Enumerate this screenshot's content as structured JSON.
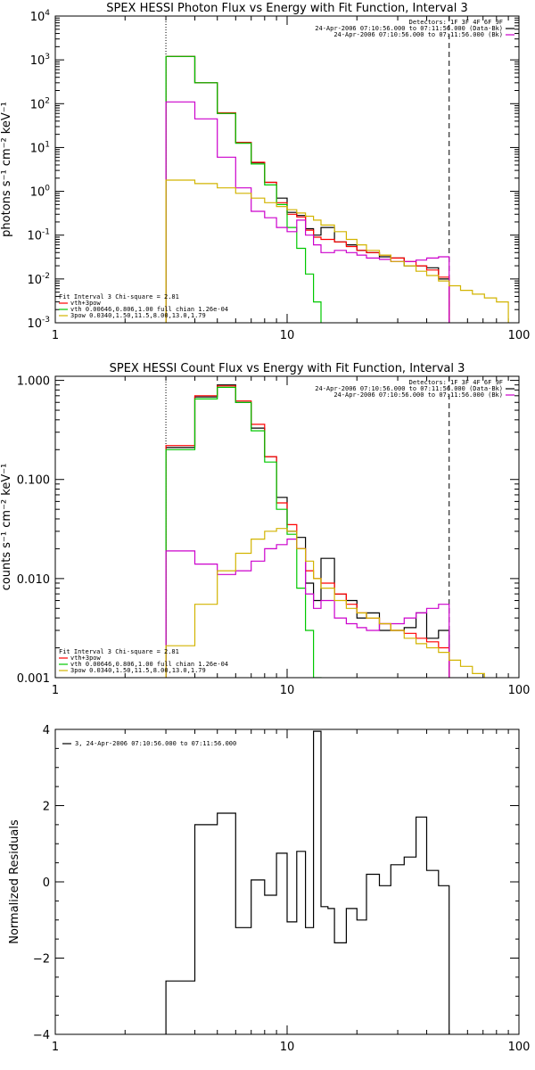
{
  "chart_data": [
    {
      "type": "line",
      "step": true,
      "scale": "log-log",
      "title": "SPEX HESSI Photon Flux vs Energy with Fit Function, Interval 3",
      "ylabel": "photons s⁻¹ cm⁻² keV⁻¹",
      "xlim": [
        1,
        100
      ],
      "ylim": [
        0.001,
        10000
      ],
      "xticks": [
        {
          "v": 1,
          "label": "1"
        },
        {
          "v": 10,
          "label": "10"
        },
        {
          "v": 100,
          "label": "100"
        }
      ],
      "yticks": [
        {
          "v": 0.001,
          "base": "10",
          "exp": "-3"
        },
        {
          "v": 0.01,
          "base": "10",
          "exp": "-2"
        },
        {
          "v": 0.1,
          "base": "10",
          "exp": "-1"
        },
        {
          "v": 1,
          "base": "10",
          "exp": "0"
        },
        {
          "v": 10,
          "base": "10",
          "exp": "1"
        },
        {
          "v": 100,
          "base": "10",
          "exp": "2"
        },
        {
          "v": 1000,
          "base": "10",
          "exp": "3"
        },
        {
          "v": 10000,
          "base": "10",
          "exp": "4"
        }
      ],
      "vlines": [
        {
          "x": 3,
          "style": "dotted"
        },
        {
          "x": 50,
          "style": "dashed"
        }
      ],
      "legend_top_right": [
        {
          "text": "Detectors: 1F 3F 4F 6F 9F",
          "color": null
        },
        {
          "text": "24-Apr-2006 07:10:56.000 to 07:11:56.000 (Data-Bk)",
          "color": "#000000"
        },
        {
          "text": "24-Apr-2006 07:10:56.000 to 07:11:56.000 (Bk)",
          "color": "#cc00cc"
        }
      ],
      "legend_bottom_left": [
        {
          "text": "Fit Interval 3   Chi-square = 2.81",
          "color": null
        },
        {
          "text": "vth+3pow",
          "color": "#ff0000"
        },
        {
          "text": "vth 0.00646,0.806,1.00   full chian 1.26e-04",
          "color": "#00c800"
        },
        {
          "text": "3pow 0.0340,1.50,11.5,8.00,13.0,1.79",
          "color": "#d2b400"
        }
      ],
      "edges": [
        3,
        4,
        5,
        6,
        7,
        8,
        9,
        10,
        11,
        12,
        13,
        14,
        16,
        18,
        20,
        22,
        25,
        28,
        32,
        36,
        40,
        45,
        50
      ],
      "series": [
        {
          "key": "data",
          "color": "#000000",
          "values": [
            1200,
            300,
            60,
            13,
            4.5,
            1.6,
            0.7,
            0.33,
            0.28,
            0.14,
            0.1,
            0.15,
            0.07,
            0.06,
            0.045,
            0.04,
            0.032,
            0.03,
            0.02,
            0.02,
            0.018,
            0.01
          ]
        },
        {
          "key": "fit",
          "color": "#ff0000",
          "values": [
            1200,
            300,
            62,
            13,
            4.6,
            1.6,
            0.55,
            0.3,
            0.26,
            0.13,
            0.09,
            0.08,
            0.07,
            0.055,
            0.045,
            0.04,
            0.035,
            0.03,
            0.025,
            0.02,
            0.016,
            0.011
          ]
        },
        {
          "key": "thermal",
          "color": "#00c800",
          "values": [
            1200,
            300,
            60,
            12.5,
            4.2,
            1.4,
            0.5,
            0.15,
            0.05,
            0.013,
            0.003,
            0.0008
          ]
        },
        {
          "key": "background",
          "color": "#cc00cc",
          "values": [
            110,
            45,
            6,
            1.2,
            0.35,
            0.25,
            0.15,
            0.12,
            0.22,
            0.1,
            0.06,
            0.04,
            0.045,
            0.04,
            0.035,
            0.03,
            0.028,
            0.025,
            0.025,
            0.027,
            0.03,
            0.032
          ]
        },
        {
          "key": "power",
          "color": "#d2b400",
          "values": [
            1.8,
            1.5,
            1.2,
            0.9,
            0.7,
            0.55,
            0.45,
            0.38,
            0.32,
            0.27,
            0.22,
            0.17,
            0.12,
            0.08,
            0.06,
            0.045,
            0.035,
            0.025,
            0.02,
            0.015,
            0.012,
            0.009,
            0.007,
            0.0055,
            0.0045,
            0.0037,
            0.003
          ],
          "edges": [
            3,
            4,
            5,
            6,
            7,
            8,
            9,
            10,
            11,
            12,
            13,
            14,
            16,
            18,
            20,
            22,
            25,
            28,
            32,
            36,
            40,
            45,
            50,
            56,
            63,
            71,
            80,
            90
          ]
        }
      ]
    },
    {
      "type": "line",
      "step": true,
      "scale": "log-log",
      "title": "SPEX HESSI Count Flux vs Energy with Fit Function, Interval 3",
      "ylabel": "counts s⁻¹ cm⁻² keV⁻¹",
      "xlim": [
        1,
        100
      ],
      "ylim": [
        0.001,
        1.1
      ],
      "xticks": [
        {
          "v": 1,
          "label": "1"
        },
        {
          "v": 10,
          "label": "10"
        },
        {
          "v": 100,
          "label": "100"
        }
      ],
      "yticks": [
        {
          "v": 0.001,
          "label": "0.001"
        },
        {
          "v": 0.01,
          "label": "0.010"
        },
        {
          "v": 0.1,
          "label": "0.100"
        },
        {
          "v": 1,
          "label": "1.000"
        }
      ],
      "vlines": [
        {
          "x": 3,
          "style": "dotted"
        },
        {
          "x": 50,
          "style": "dashed"
        }
      ],
      "legend_top_right": [
        {
          "text": "Detectors: 1F 3F 4F 6F 9F",
          "color": null
        },
        {
          "text": "24-Apr-2006 07:10:56.000 to 07:11:56.000 (Data-Bk)",
          "color": "#000000"
        },
        {
          "text": "24-Apr-2006 07:10:56.000 to 07:11:56.000 (Bk)",
          "color": "#cc00cc"
        }
      ],
      "legend_bottom_left": [
        {
          "text": "Fit Interval 3   Chi-square = 2.81",
          "color": null
        },
        {
          "text": "vth+3pow",
          "color": "#ff0000"
        },
        {
          "text": "vth 0.00646,0.806,1.00   full chian 1.26e-04",
          "color": "#00c800"
        },
        {
          "text": "3pow 0.0340,1.50,11.5,8.00,13.0,1.79",
          "color": "#d2b400"
        }
      ],
      "edges": [
        3,
        4,
        5,
        6,
        7,
        8,
        9,
        10,
        11,
        12,
        13,
        14,
        16,
        18,
        20,
        22,
        25,
        28,
        32,
        36,
        40,
        45,
        50
      ],
      "series": [
        {
          "key": "data",
          "color": "#000000",
          "values": [
            0.21,
            0.68,
            0.9,
            0.6,
            0.33,
            0.17,
            0.066,
            0.03,
            0.026,
            0.009,
            0.006,
            0.016,
            0.007,
            0.006,
            0.004,
            0.0045,
            0.003,
            0.003,
            0.0032,
            0.0045,
            0.0025,
            0.003
          ]
        },
        {
          "key": "fit",
          "color": "#ff0000",
          "values": [
            0.22,
            0.7,
            0.88,
            0.62,
            0.36,
            0.17,
            0.058,
            0.035,
            0.02,
            0.012,
            0.01,
            0.009,
            0.007,
            0.0055,
            0.0045,
            0.004,
            0.0035,
            0.003,
            0.0028,
            0.0025,
            0.0023,
            0.002
          ]
        },
        {
          "key": "thermal",
          "color": "#00c800",
          "values": [
            0.2,
            0.65,
            0.85,
            0.6,
            0.31,
            0.15,
            0.05,
            0.028,
            0.008,
            0.003,
            0.001
          ]
        },
        {
          "key": "background",
          "color": "#cc00cc",
          "values": [
            0.019,
            0.014,
            0.011,
            0.012,
            0.015,
            0.02,
            0.022,
            0.025,
            0.02,
            0.007,
            0.005,
            0.006,
            0.004,
            0.0035,
            0.0032,
            0.003,
            0.0035,
            0.0035,
            0.004,
            0.0045,
            0.005,
            0.0055
          ]
        },
        {
          "key": "power",
          "color": "#d2b400",
          "values": [
            0.0021,
            0.0055,
            0.012,
            0.018,
            0.025,
            0.03,
            0.032,
            0.03,
            0.02,
            0.015,
            0.01,
            0.008,
            0.006,
            0.005,
            0.0045,
            0.004,
            0.0035,
            0.003,
            0.0025,
            0.0022,
            0.002,
            0.0018,
            0.0015,
            0.0013,
            0.0011,
            0.0009
          ],
          "edges": [
            3,
            4,
            5,
            6,
            7,
            8,
            9,
            10,
            11,
            12,
            13,
            14,
            16,
            18,
            20,
            22,
            25,
            28,
            32,
            36,
            40,
            45,
            50,
            56,
            63,
            71,
            80
          ]
        }
      ]
    },
    {
      "type": "line",
      "step": true,
      "scale": "log-linear",
      "title": "",
      "ylabel": "Normalized Residuals",
      "xlim": [
        1,
        100
      ],
      "ylim": [
        -4,
        4
      ],
      "xticks": [
        {
          "v": 1,
          "label": "1"
        },
        {
          "v": 10,
          "label": "10"
        },
        {
          "v": 100,
          "label": "100"
        }
      ],
      "yticks": [
        {
          "v": -4,
          "label": "−4"
        },
        {
          "v": -2,
          "label": "−2"
        },
        {
          "v": 0,
          "label": "0"
        },
        {
          "v": 2,
          "label": "2"
        },
        {
          "v": 4,
          "label": "4"
        }
      ],
      "vlines": [],
      "legend_top_left": [
        {
          "text": "3, 24-Apr-2006 07:10:56.000 to 07:11:56.000",
          "color": "#000000"
        }
      ],
      "edges": [
        3,
        4,
        5,
        6,
        7,
        8,
        9,
        10,
        11,
        12,
        13,
        14,
        15,
        16,
        18,
        20,
        22,
        25,
        28,
        32,
        36,
        40,
        45,
        50
      ],
      "series": [
        {
          "key": "residuals",
          "color": "#000000",
          "values": [
            -2.6,
            1.5,
            1.8,
            -1.2,
            0.05,
            -0.35,
            0.75,
            -1.05,
            0.8,
            -1.2,
            3.95,
            -0.65,
            -0.7,
            -1.6,
            -0.7,
            -1.0,
            0.2,
            -0.1,
            0.45,
            0.65,
            1.7,
            0.3,
            -0.1
          ]
        }
      ]
    }
  ]
}
